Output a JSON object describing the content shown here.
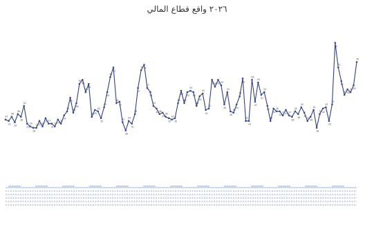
{
  "colors": {
    "line": "#2f3f7a",
    "marker": "#3a4b8c",
    "label": "#444444",
    "axis": "#9bb7d6"
  },
  "chart_data": {
    "type": "line",
    "title": "٢٠٢٦ واقع قطاع المالي",
    "footer": "",
    "xlabel": "",
    "ylabel": "",
    "grid": false,
    "legend": "none",
    "ylim": [
      0,
      100
    ],
    "series": [
      {
        "values": [
          34,
          33,
          36,
          32,
          38,
          36,
          44,
          31,
          29,
          28,
          28,
          33,
          29,
          35,
          31,
          31,
          29,
          34,
          31,
          37,
          40,
          50,
          39,
          46,
          60,
          63,
          54,
          60,
          36,
          41,
          40,
          35,
          43,
          54,
          65,
          72,
          46,
          47,
          32,
          26,
          33,
          31,
          38,
          57,
          70,
          74,
          57,
          54,
          44,
          42,
          38,
          39,
          36,
          35,
          34,
          35,
          46,
          55,
          46,
          54,
          55,
          54,
          44,
          51,
          53,
          41,
          42,
          63,
          58,
          63,
          59,
          45,
          54,
          40,
          39,
          45,
          51,
          64,
          33,
          33,
          63,
          47,
          61,
          52,
          54,
          44,
          33,
          42,
          40,
          40,
          37,
          41,
          37,
          36,
          40,
          38,
          43,
          39,
          33,
          36,
          41,
          28,
          38,
          42,
          43,
          33,
          45,
          90,
          72,
          62,
          52,
          56,
          54,
          59,
          76
        ]
      }
    ]
  }
}
